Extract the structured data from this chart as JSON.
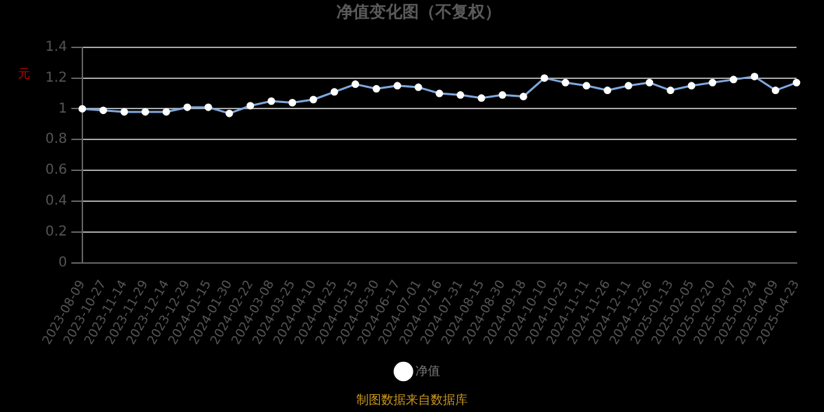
{
  "chart_data": {
    "type": "line",
    "title": "净值变化图（不复权）",
    "ylabel": "元",
    "categories": [
      "2023-08-09",
      "2023-10-27",
      "2023-11-14",
      "2023-11-29",
      "2023-12-14",
      "2023-12-29",
      "2024-01-15",
      "2024-01-30",
      "2024-02-22",
      "2024-03-08",
      "2024-03-25",
      "2024-04-10",
      "2024-04-25",
      "2024-05-15",
      "2024-05-30",
      "2024-06-17",
      "2024-07-01",
      "2024-07-16",
      "2024-07-31",
      "2024-08-15",
      "2024-08-30",
      "2024-09-18",
      "2024-10-10",
      "2024-10-25",
      "2024-11-11",
      "2024-11-26",
      "2024-12-11",
      "2024-12-26",
      "2025-01-13",
      "2025-02-05",
      "2025-02-20",
      "2025-03-07",
      "2025-03-24",
      "2025-04-09",
      "2025-04-23"
    ],
    "series": [
      {
        "name": "净值",
        "color": "#7fa8dc",
        "values": [
          1.0,
          0.99,
          0.98,
          0.98,
          0.98,
          1.01,
          1.01,
          0.97,
          1.02,
          1.05,
          1.04,
          1.06,
          1.11,
          1.16,
          1.13,
          1.15,
          1.14,
          1.1,
          1.09,
          1.07,
          1.09,
          1.08,
          1.2,
          1.17,
          1.15,
          1.12,
          1.15,
          1.17,
          1.12,
          1.15,
          1.17,
          1.19,
          1.21,
          1.12,
          1.17
        ]
      }
    ],
    "ylim": [
      0,
      1.4
    ],
    "yticks": [
      0,
      0.2,
      0.4,
      0.6,
      0.8,
      1,
      1.2,
      1.4
    ],
    "grid": "y",
    "legend": "bottom",
    "marker": "circle",
    "line_style": "solid",
    "annotations": [
      "制图数据来自数据库"
    ]
  }
}
